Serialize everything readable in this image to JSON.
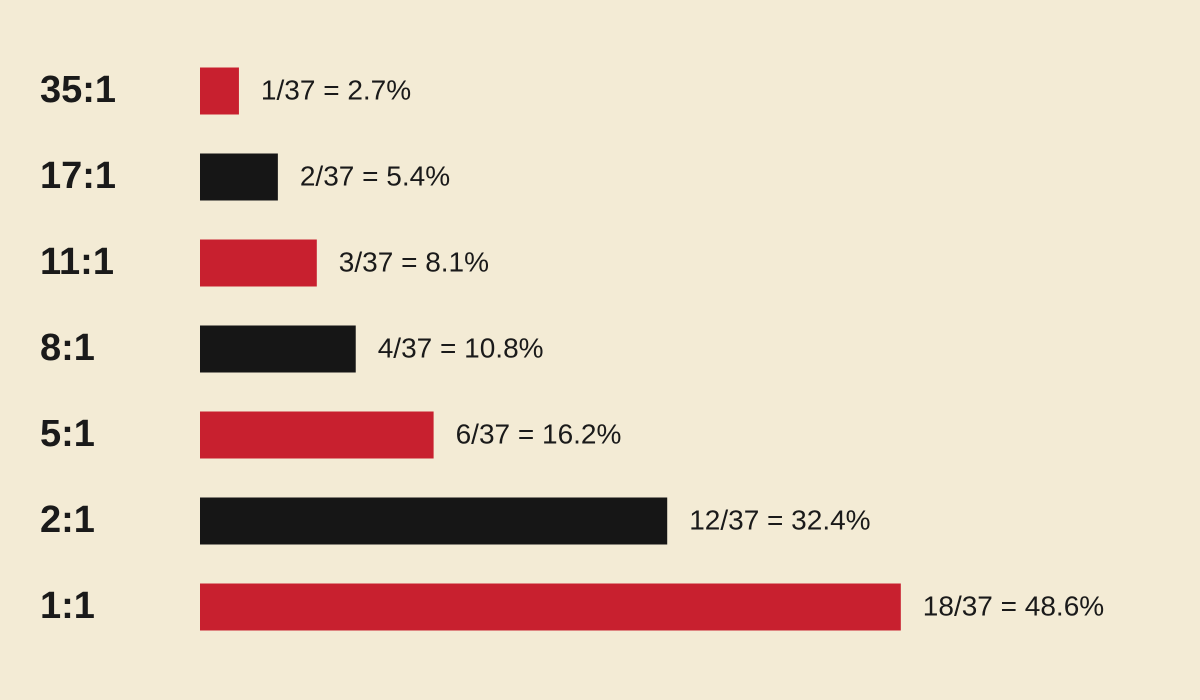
{
  "chart_data": {
    "type": "bar",
    "orientation": "horizontal",
    "categories": [
      "35:1",
      "17:1",
      "11:1",
      "8:1",
      "5:1",
      "2:1",
      "1:1"
    ],
    "values": [
      2.7,
      5.4,
      8.1,
      10.8,
      16.2,
      32.4,
      48.6
    ],
    "value_labels": [
      "1/37 = 2.7%",
      "2/37 = 5.4%",
      "3/37 = 8.1%",
      "4/37 = 10.8%",
      "6/37 = 16.2%",
      "12/37 = 32.4%",
      "18/37 = 48.6%"
    ],
    "colors": [
      "#c8202f",
      "#161616",
      "#c8202f",
      "#161616",
      "#c8202f",
      "#161616",
      "#c8202f"
    ]
  }
}
